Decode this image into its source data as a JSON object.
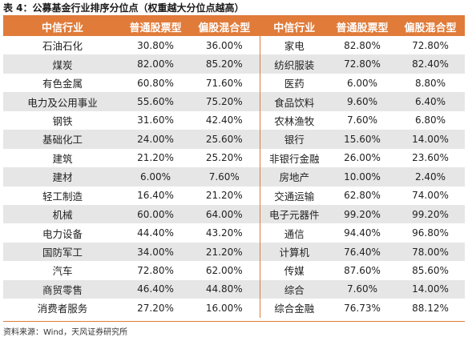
{
  "title": "表 4：公募基金行业排序分位点（权重越大分位点越高）",
  "headers": [
    "中信行业",
    "普通股票型",
    "偏股混合型",
    "中信行业",
    "普通股票型",
    "偏股混合型"
  ],
  "rows": [
    [
      "石油石化",
      "30.80%",
      "36.00%",
      "家电",
      "82.80%",
      "72.80%"
    ],
    [
      "煤炭",
      "82.00%",
      "85.20%",
      "纺织服装",
      "72.80%",
      "82.40%"
    ],
    [
      "有色金属",
      "60.80%",
      "71.60%",
      "医药",
      "6.00%",
      "8.80%"
    ],
    [
      "电力及公用事业",
      "55.60%",
      "75.20%",
      "食品饮料",
      "9.60%",
      "6.40%"
    ],
    [
      "钢铁",
      "31.60%",
      "42.40%",
      "农林渔牧",
      "7.60%",
      "6.80%"
    ],
    [
      "基础化工",
      "24.00%",
      "25.60%",
      "银行",
      "15.60%",
      "14.00%"
    ],
    [
      "建筑",
      "21.20%",
      "25.20%",
      "非银行金融",
      "26.00%",
      "23.60%"
    ],
    [
      "建材",
      "6.00%",
      "7.60%",
      "房地产",
      "10.00%",
      "2.40%"
    ],
    [
      "轻工制造",
      "16.40%",
      "21.20%",
      "交通运输",
      "62.80%",
      "74.00%"
    ],
    [
      "机械",
      "60.00%",
      "64.00%",
      "电子元器件",
      "99.20%",
      "99.20%"
    ],
    [
      "电力设备",
      "44.40%",
      "43.20%",
      "通信",
      "94.40%",
      "96.80%"
    ],
    [
      "国防军工",
      "34.00%",
      "21.20%",
      "计算机",
      "76.40%",
      "78.00%"
    ],
    [
      "汽车",
      "72.80%",
      "62.00%",
      "传媒",
      "87.60%",
      "85.60%"
    ],
    [
      "商贸零售",
      "46.40%",
      "44.80%",
      "综合",
      "7.60%",
      "14.00%"
    ],
    [
      "消费者服务",
      "27.20%",
      "16.00%",
      "综合金融",
      "76.73%",
      "88.12%"
    ]
  ],
  "source": "资料来源：Wind，天风证券研究所",
  "colors": {
    "accent": "#E07B39",
    "stripe": "#E6E6E6",
    "header_text": "#FFFFFF"
  }
}
